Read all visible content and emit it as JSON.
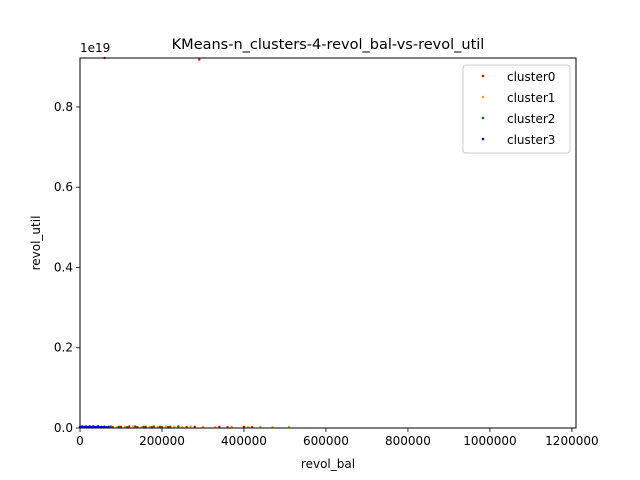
{
  "chart_data": {
    "type": "scatter",
    "title": "KMeans-n_clusters-4-revol_bal-vs-revol_util",
    "xlabel": "revol_bal",
    "ylabel": "revol_util",
    "y_offset_label": "1e19",
    "xlim": [
      0,
      1210000
    ],
    "ylim": [
      0,
      9.22e+18
    ],
    "xticks": [
      0,
      200000,
      400000,
      600000,
      800000,
      1000000,
      1200000
    ],
    "xtick_labels": [
      "0",
      "200000",
      "400000",
      "600000",
      "800000",
      "1000000",
      "1200000"
    ],
    "yticks": [
      0,
      2e+18,
      4e+18,
      6e+18,
      8e+18
    ],
    "ytick_labels": [
      "0.0",
      "0.2",
      "0.4",
      "0.6",
      "0.8"
    ],
    "grid": false,
    "legend_position": "upper right",
    "series": [
      {
        "name": "cluster0",
        "color": "#ff0000",
        "x": [
          5000,
          20000,
          45000,
          60000,
          80000,
          100000,
          120000,
          140000,
          160000,
          180000,
          200000,
          220000,
          240000,
          260000,
          280000,
          300000,
          340000,
          360000,
          400000,
          420000,
          291000,
          60000
        ],
        "y": [
          3e+16,
          2e+16,
          4e+16,
          3e+16,
          2e+16,
          3e+16,
          4e+16,
          2e+16,
          3e+16,
          4e+16,
          2e+16,
          3e+16,
          4e+16,
          2e+16,
          3e+16,
          2e+16,
          3e+16,
          2e+16,
          3e+16,
          2e+16,
          9.18e+18,
          9.22e+18
        ]
      },
      {
        "name": "cluster1",
        "color": "#ffa500",
        "x": [
          90000,
          110000,
          130000,
          150000,
          170000,
          190000,
          210000,
          230000,
          250000,
          270000,
          300000,
          330000,
          370000,
          410000,
          440000,
          470000,
          510000
        ],
        "y": [
          2e+16,
          3e+16,
          4e+16,
          2e+16,
          3e+16,
          2e+16,
          4e+16,
          3e+16,
          2e+16,
          4e+16,
          3e+16,
          2e+16,
          3e+16,
          2e+16,
          3e+16,
          2e+16,
          3e+16
        ]
      },
      {
        "name": "cluster2",
        "color": "#008000",
        "x": [
          30000,
          55000,
          75000,
          95000,
          115000,
          135000,
          155000,
          175000,
          195000,
          215000,
          240000
        ],
        "y": [
          3e+16,
          2e+16,
          4e+16,
          3e+16,
          2e+16,
          4e+16,
          3e+16,
          2e+16,
          3e+16,
          2e+16,
          3e+16
        ]
      },
      {
        "name": "cluster3",
        "color": "#0000ff",
        "x": [
          0,
          3000,
          6000,
          9000,
          12000,
          15000,
          18000,
          21000,
          24000,
          27000,
          30000,
          33000,
          36000,
          40000,
          44000,
          48000,
          52000,
          56000,
          60000,
          65000,
          70000
        ],
        "y": [
          2e+16,
          3e+16,
          4e+16,
          2e+16,
          3e+16,
          4e+16,
          2e+16,
          3e+16,
          4e+16,
          2e+16,
          3e+16,
          4e+16,
          2e+16,
          3e+16,
          4e+16,
          2e+16,
          3e+16,
          2e+16,
          3e+16,
          2e+16,
          3e+16
        ]
      }
    ]
  }
}
